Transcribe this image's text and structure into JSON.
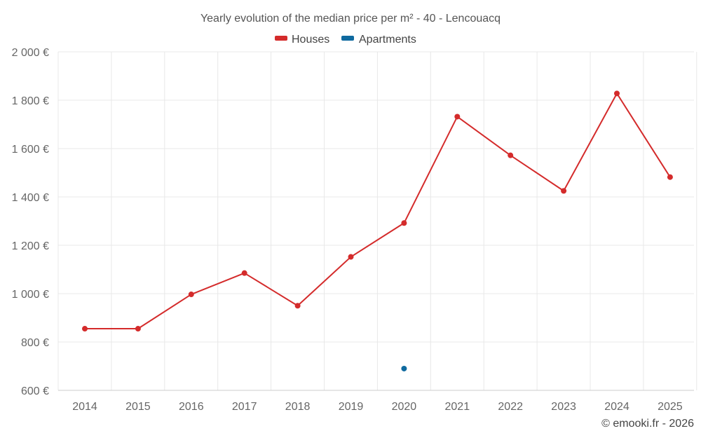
{
  "chart_data": {
    "type": "line",
    "title": "Yearly evolution of the median price per m² - 40 - Lencouacq",
    "categories": [
      "2014",
      "2015",
      "2016",
      "2017",
      "2018",
      "2019",
      "2020",
      "2021",
      "2022",
      "2023",
      "2024",
      "2025"
    ],
    "ylim": [
      600,
      2000
    ],
    "y_ticks": [
      600,
      800,
      1000,
      1200,
      1400,
      1600,
      1800,
      2000
    ],
    "y_tick_labels": [
      "600 €",
      "800 €",
      "1 000 €",
      "1 200 €",
      "1 400 €",
      "1 600 €",
      "1 800 €",
      "2 000 €"
    ],
    "grid": true,
    "legend_position": "top-center",
    "series": [
      {
        "name": "Houses",
        "color": "#d42b2b",
        "values": [
          855,
          855,
          997,
          1085,
          950,
          1152,
          1292,
          1732,
          1572,
          1425,
          1828,
          1482
        ]
      },
      {
        "name": "Apartments",
        "color": "#0f6a9f",
        "values": [
          null,
          null,
          null,
          null,
          null,
          null,
          690,
          null,
          null,
          null,
          null,
          null
        ]
      }
    ],
    "xlabel": "",
    "ylabel": ""
  },
  "legend": {
    "houses_label": "Houses",
    "apartments_label": "Apartments"
  },
  "credit": "© emooki.fr - 2026"
}
